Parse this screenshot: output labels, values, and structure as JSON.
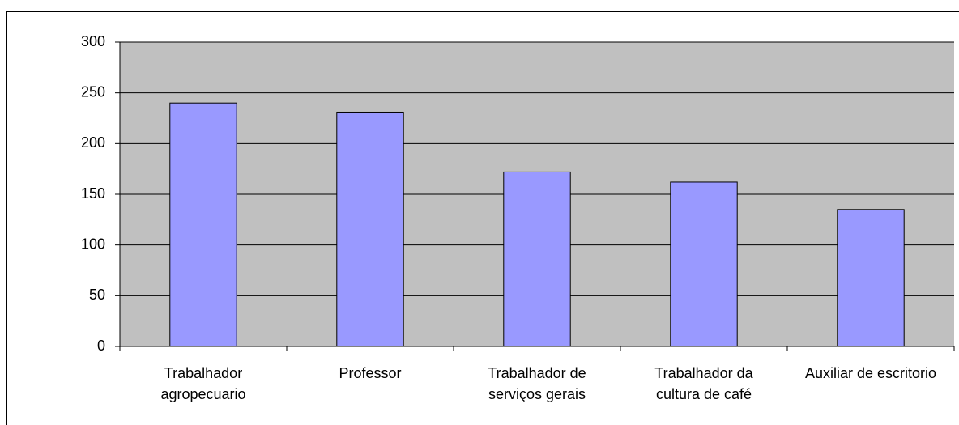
{
  "chart_data": {
    "type": "bar",
    "categories": [
      "Trabalhador agropecuario",
      "Professor",
      "Trabalhador de serviços gerais",
      "Trabalhador da cultura de café",
      "Auxiliar de escritorio"
    ],
    "values": [
      240,
      231,
      172,
      162,
      135
    ],
    "color": "#9999ff",
    "ylim": [
      0,
      300
    ],
    "yticks": [
      0,
      50,
      100,
      150,
      200,
      250,
      300
    ],
    "grid": true
  }
}
